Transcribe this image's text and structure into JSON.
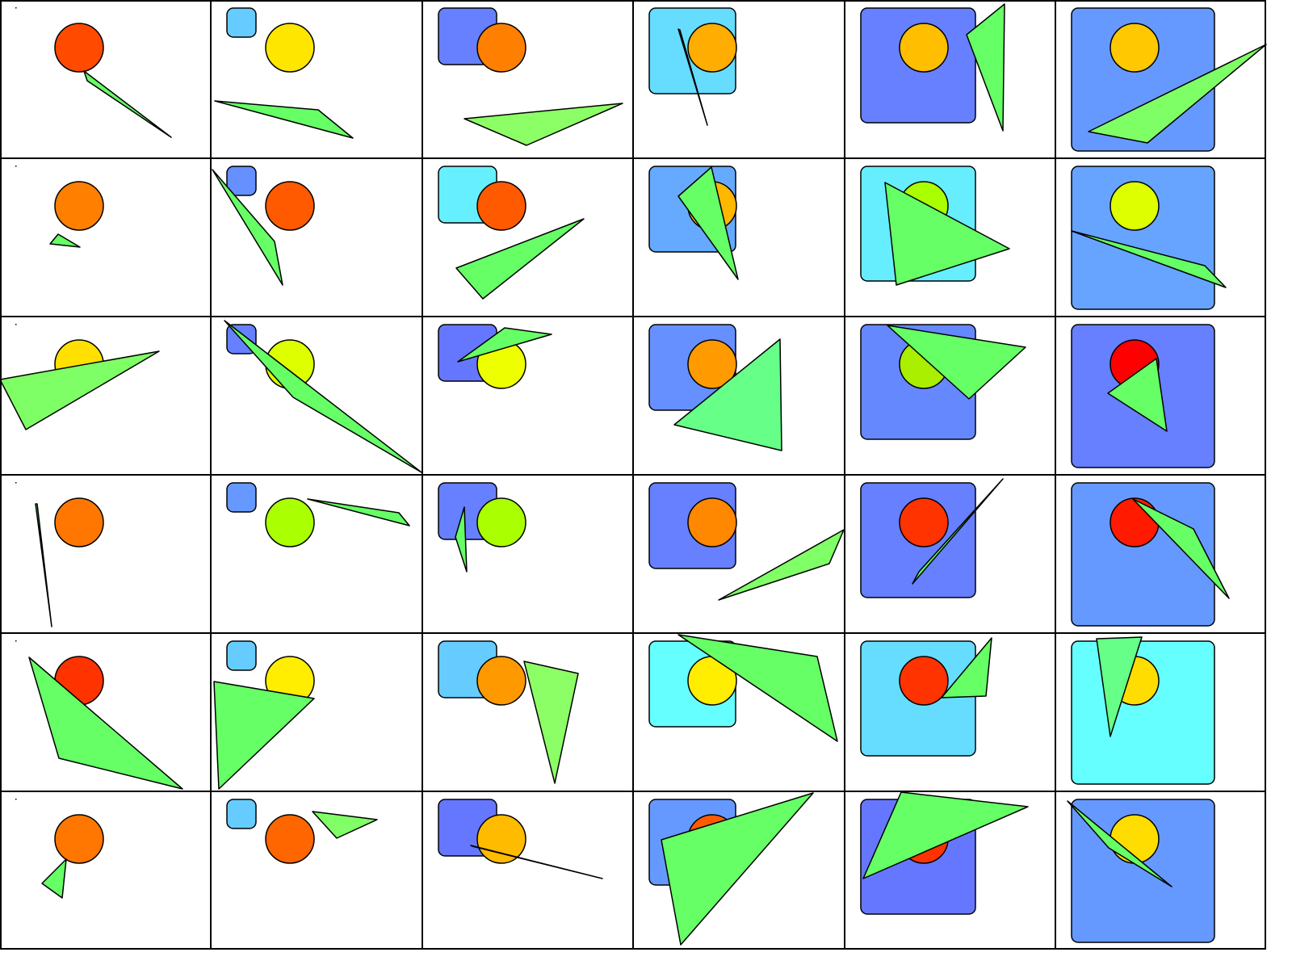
{
  "layout": {
    "rows": 6,
    "cols": 6
  },
  "colors": {
    "cell_background": "#ffffff",
    "grid_line": "#000000",
    "shape_stroke": "#000000",
    "triangle_fill": "#66ff66"
  },
  "cells": [
    {
      "square": null,
      "circle": "#ff4a00",
      "triangle": "#66ff66"
    },
    {
      "square": "#66ccff",
      "circle": "#ffe600",
      "triangle": "#66ff66"
    },
    {
      "square": "#6680ff",
      "circle": "#ff8000",
      "triangle": "#8cff66"
    },
    {
      "square": "#66ddff",
      "circle": "#ffad00",
      "triangle": "#66ff66"
    },
    {
      "square": "#6680ff",
      "circle": "#ffbe00",
      "triangle": "#66ff66"
    },
    {
      "square": "#6699ff",
      "circle": "#ffc800",
      "triangle": "#7fff66"
    },
    {
      "square": null,
      "circle": "#ff7f00",
      "triangle": "#66ff66"
    },
    {
      "square": "#6690ff",
      "circle": "#ff5a00",
      "triangle": "#66ff66"
    },
    {
      "square": "#66f0ff",
      "circle": "#ff5a00",
      "triangle": "#66ff66"
    },
    {
      "square": "#66aaff",
      "circle": "#ffb700",
      "triangle": "#66ff66"
    },
    {
      "square": "#66eeff",
      "circle": "#aaff00",
      "triangle": "#66ff66"
    },
    {
      "square": "#66a4ff",
      "circle": "#ddff00",
      "triangle": "#66ff66"
    },
    {
      "square": null,
      "circle": "#ffe000",
      "triangle": "#7fff66"
    },
    {
      "square": "#6680ff",
      "circle": "#ddff00",
      "triangle": "#66ff66"
    },
    {
      "square": "#6677ff",
      "circle": "#eeff00",
      "triangle": "#66ff66"
    },
    {
      "square": "#6690ff",
      "circle": "#ff9a00",
      "triangle": "#66ff88"
    },
    {
      "square": "#6688ff",
      "circle": "#aaee00",
      "triangle": "#66ff66"
    },
    {
      "square": "#6680ff",
      "circle": "#ff0000",
      "triangle": "#66ff66"
    },
    {
      "square": null,
      "circle": "#ff7700",
      "triangle": "#66ff66"
    },
    {
      "square": "#6699ff",
      "circle": "#aaff00",
      "triangle": "#66ff66"
    },
    {
      "square": "#6680ff",
      "circle": "#aaff00",
      "triangle": "#66ff66"
    },
    {
      "square": "#6680ff",
      "circle": "#ff8800",
      "triangle": "#80ff66"
    },
    {
      "square": "#6680ff",
      "circle": "#ff3300",
      "triangle": "#66ff66"
    },
    {
      "square": "#6699ff",
      "circle": "#ff1a00",
      "triangle": "#66ff66"
    },
    {
      "square": null,
      "circle": "#ff3300",
      "triangle": "#66ff66"
    },
    {
      "square": "#66ccff",
      "circle": "#ffee00",
      "triangle": "#66ff66"
    },
    {
      "square": "#66ccff",
      "circle": "#ff9900",
      "triangle": "#8cff66"
    },
    {
      "square": "#66ffff",
      "circle": "#ffee00",
      "triangle": "#66ff66"
    },
    {
      "square": "#66ddff",
      "circle": "#ff3300",
      "triangle": "#66ff66"
    },
    {
      "square": "#66ffff",
      "circle": "#ffdd00",
      "triangle": "#66ff88"
    },
    {
      "square": null,
      "circle": "#ff7700",
      "triangle": "#66ff66"
    },
    {
      "square": "#66ccff",
      "circle": "#ff6600",
      "triangle": "#80ff66"
    },
    {
      "square": "#6677ff",
      "circle": "#ffbb00",
      "triangle": "#66ff66"
    },
    {
      "square": "#6699ff",
      "circle": "#ff5a00",
      "triangle": "#66ff66"
    },
    {
      "square": "#6677ff",
      "circle": "#ff3300",
      "triangle": "#66ff66"
    },
    {
      "square": "#6699ff",
      "circle": "#ffdd00",
      "triangle": "#66ff66"
    }
  ]
}
